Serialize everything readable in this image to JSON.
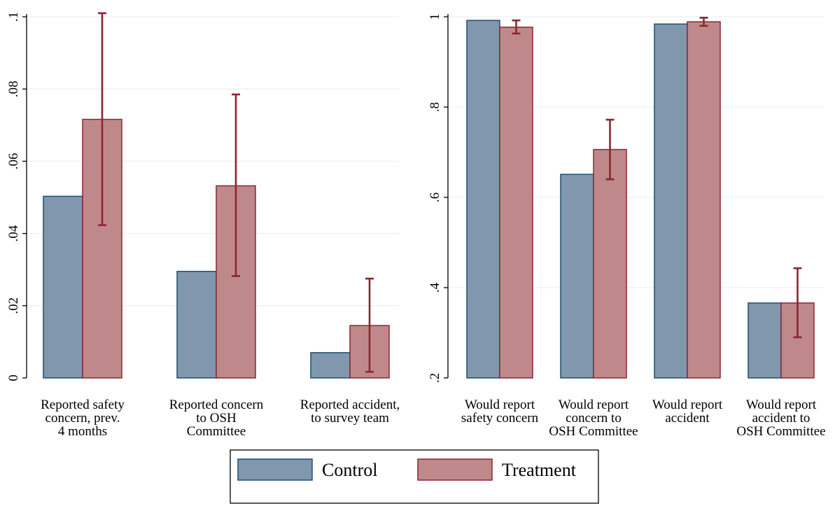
{
  "colors": {
    "control_fill": "#8197ad",
    "control_stroke": "#1f4e73",
    "treatment_fill": "#bf898b",
    "treatment_stroke": "#8b2630",
    "error_bar": "#8b2630",
    "grid": "#eaf1f3"
  },
  "legend": {
    "items": [
      {
        "key": "control",
        "label": "Control"
      },
      {
        "key": "treatment",
        "label": "Treatment"
      }
    ]
  },
  "chart_data": [
    {
      "type": "bar",
      "title": "",
      "xlabel": "",
      "ylabel": "",
      "ylim": [
        0,
        0.1
      ],
      "yticks": [
        0,
        0.02,
        0.04,
        0.06,
        0.08,
        0.1
      ],
      "ytick_labels": [
        "0",
        ".02",
        ".04",
        ".06",
        ".08",
        ".1"
      ],
      "grid": true,
      "categories": [
        [
          "Reported safety",
          "concern, prev.",
          "4 months"
        ],
        [
          "Reported concern",
          "to OSH",
          "Committee"
        ],
        [
          "Reported accident,",
          "to survey team"
        ]
      ],
      "series": [
        {
          "name": "Control",
          "values": [
            0.0503,
            0.0295,
            0.007
          ]
        },
        {
          "name": "Treatment",
          "values": [
            0.0716,
            0.0532,
            0.0145
          ],
          "ci_low": [
            0.0423,
            0.0282,
            0.0017
          ],
          "ci_high": [
            0.101,
            0.0785,
            0.0275
          ]
        }
      ]
    },
    {
      "type": "bar",
      "title": "",
      "xlabel": "",
      "ylabel": "",
      "ylim": [
        0.2,
        1.0
      ],
      "yticks": [
        0.2,
        0.4,
        0.6,
        0.8,
        1.0
      ],
      "ytick_labels": [
        ".2",
        ".4",
        ".6",
        ".8",
        "1"
      ],
      "grid": true,
      "categories": [
        [
          "Would report",
          "safety concern"
        ],
        [
          "Would report",
          "concern to",
          "OSH Committee"
        ],
        [
          "Would report",
          "accident"
        ],
        [
          "Would report",
          "accident to",
          "OSH Committee"
        ]
      ],
      "series": [
        {
          "name": "Control",
          "values": [
            0.992,
            0.651,
            0.984,
            0.366
          ]
        },
        {
          "name": "Treatment",
          "values": [
            0.977,
            0.706,
            0.989,
            0.366
          ],
          "ci_low": [
            0.963,
            0.64,
            0.98,
            0.29
          ],
          "ci_high": [
            0.992,
            0.772,
            0.998,
            0.443
          ]
        }
      ]
    }
  ]
}
